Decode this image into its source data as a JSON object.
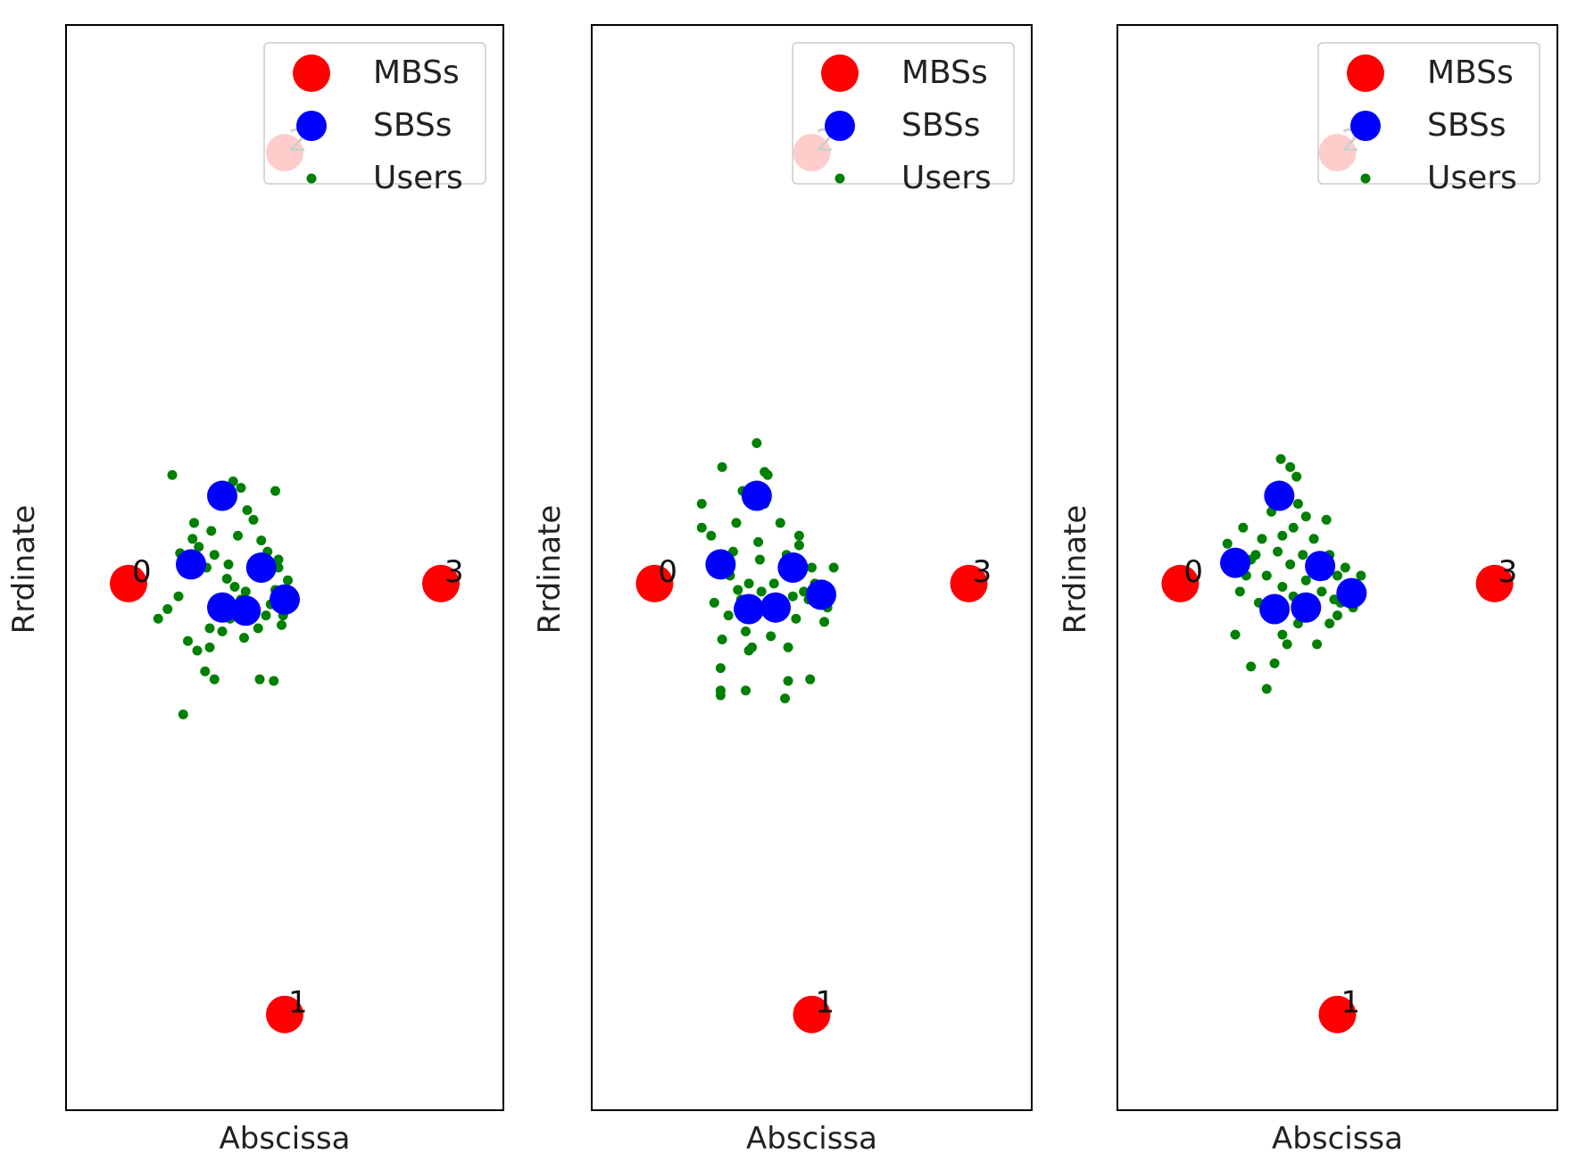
{
  "colors": {
    "mbs": "#ff0000",
    "sbs": "#0000ff",
    "user": "#008000",
    "frame": "#000000"
  },
  "chart_data": [
    {
      "type": "scatter",
      "xlabel": "Abscissa",
      "ylabel": "Rrdinate",
      "xlim": [
        -1.2,
        1.6
      ],
      "ylim": [
        -3.3,
        3.5
      ],
      "grid": false,
      "legend": {
        "position": "top-right",
        "entries": [
          "MBSs",
          "SBSs",
          "Users"
        ]
      },
      "mbs": [
        {
          "label": "0",
          "x": -0.8,
          "y": 0
        },
        {
          "label": "1",
          "x": 0.2,
          "y": -2.7
        },
        {
          "label": "2",
          "x": 0.2,
          "y": 2.7
        },
        {
          "label": "3",
          "x": 1.2,
          "y": 0
        }
      ],
      "sbs": [
        {
          "x": -0.2,
          "y": 0.55
        },
        {
          "x": -0.4,
          "y": 0.12
        },
        {
          "x": 0.05,
          "y": 0.1
        },
        {
          "x": 0.2,
          "y": -0.1
        },
        {
          "x": -0.2,
          "y": -0.15
        },
        {
          "x": -0.05,
          "y": -0.17
        }
      ],
      "users": [
        [
          -0.52,
          0.68
        ],
        [
          -0.13,
          0.64
        ],
        [
          -0.38,
          0.38
        ],
        [
          0.0,
          0.4
        ],
        [
          -0.3,
          0.1
        ],
        [
          0.16,
          0.15
        ],
        [
          -0.05,
          -0.05
        ],
        [
          -0.36,
          -0.42
        ],
        [
          0.04,
          -0.6
        ],
        [
          -0.45,
          -0.82
        ],
        [
          -0.25,
          -0.6
        ],
        [
          0.13,
          -0.61
        ],
        [
          0.22,
          0.02
        ],
        [
          -0.1,
          0.3
        ],
        [
          -0.28,
          -0.28
        ],
        [
          0.08,
          -0.2
        ],
        [
          -0.48,
          -0.08
        ],
        [
          0.14,
          0.58
        ],
        [
          -0.16,
          0.12
        ],
        [
          -0.04,
          0.46
        ],
        [
          -0.2,
          -0.3
        ],
        [
          0.1,
          0.09
        ],
        [
          -0.61,
          -0.22
        ],
        [
          -0.35,
          0.23
        ],
        [
          -0.12,
          -0.02
        ],
        [
          0.03,
          -0.28
        ],
        [
          0.19,
          -0.2
        ],
        [
          -0.27,
          0.33
        ],
        [
          0.05,
          0.27
        ],
        [
          -0.42,
          -0.36
        ],
        [
          -0.08,
          0.6
        ],
        [
          0.14,
          -0.04
        ],
        [
          -0.22,
          -0.1
        ],
        [
          -0.47,
          0.19
        ],
        [
          0.11,
          -0.13
        ],
        [
          -0.55,
          -0.16
        ],
        [
          -0.31,
          -0.55
        ],
        [
          0.06,
          0.06
        ],
        [
          -0.15,
          -0.22
        ],
        [
          -0.06,
          -0.34
        ],
        [
          0.18,
          -0.26
        ],
        [
          -0.39,
          0.28
        ],
        [
          0.0,
          0.13
        ],
        [
          -0.25,
          0.18
        ],
        [
          0.09,
          0.2
        ],
        [
          -0.17,
          0.03
        ],
        [
          -0.44,
          0.09
        ],
        [
          -0.28,
          -0.4
        ],
        [
          0.16,
          0.1
        ],
        [
          -0.08,
          -0.1
        ]
      ]
    },
    {
      "type": "scatter",
      "xlabel": "Abscissa",
      "ylabel": "Rrdinate",
      "xlim": [
        -1.2,
        1.6
      ],
      "ylim": [
        -3.3,
        3.5
      ],
      "grid": false,
      "legend": {
        "position": "top-right",
        "entries": [
          "MBSs",
          "SBSs",
          "Users"
        ]
      },
      "mbs": [
        {
          "label": "0",
          "x": -0.8,
          "y": 0
        },
        {
          "label": "1",
          "x": 0.2,
          "y": -2.7
        },
        {
          "label": "2",
          "x": 0.2,
          "y": 2.7
        },
        {
          "label": "3",
          "x": 1.2,
          "y": 0
        }
      ],
      "sbs": [
        {
          "x": -0.15,
          "y": 0.55
        },
        {
          "x": -0.38,
          "y": 0.12
        },
        {
          "x": 0.08,
          "y": 0.1
        },
        {
          "x": 0.26,
          "y": -0.07
        },
        {
          "x": -0.2,
          "y": -0.16
        },
        {
          "x": -0.03,
          "y": -0.15
        }
      ],
      "users": [
        [
          -0.15,
          0.88
        ],
        [
          -0.37,
          0.73
        ],
        [
          -0.08,
          0.68
        ],
        [
          -0.24,
          0.58
        ],
        [
          -0.5,
          0.5
        ],
        [
          0.0,
          0.38
        ],
        [
          -0.44,
          0.3
        ],
        [
          0.12,
          0.24
        ],
        [
          -0.3,
          0.2
        ],
        [
          0.2,
          0.1
        ],
        [
          -0.13,
          0.15
        ],
        [
          0.34,
          0.1
        ],
        [
          -0.04,
          0.0
        ],
        [
          -0.27,
          -0.04
        ],
        [
          0.18,
          -0.1
        ],
        [
          -0.33,
          -0.2
        ],
        [
          0.1,
          -0.22
        ],
        [
          -0.22,
          -0.3
        ],
        [
          0.28,
          -0.24
        ],
        [
          -0.06,
          -0.33
        ],
        [
          -0.37,
          -0.35
        ],
        [
          0.05,
          -0.4
        ],
        [
          -0.2,
          -0.42
        ],
        [
          -0.38,
          -0.53
        ],
        [
          0.19,
          -0.6
        ],
        [
          -0.38,
          -0.67
        ],
        [
          0.05,
          -0.61
        ],
        [
          -0.22,
          -0.67
        ],
        [
          -0.38,
          -0.7
        ],
        [
          0.03,
          -0.72
        ],
        [
          -0.18,
          -0.4
        ],
        [
          0.12,
          0.3
        ],
        [
          -0.1,
          0.5
        ],
        [
          -0.4,
          0.15
        ],
        [
          0.15,
          -0.05
        ],
        [
          -0.05,
          -0.2
        ],
        [
          0.22,
          0.0
        ],
        [
          -0.28,
          0.38
        ],
        [
          -0.14,
          0.26
        ],
        [
          -0.5,
          0.35
        ],
        [
          0.04,
          0.18
        ],
        [
          -0.25,
          -0.1
        ],
        [
          0.3,
          -0.15
        ],
        [
          -0.12,
          -0.05
        ],
        [
          -0.32,
          0.05
        ],
        [
          0.08,
          -0.08
        ],
        [
          -0.2,
          0.0
        ],
        [
          0.0,
          -0.12
        ],
        [
          -0.42,
          -0.12
        ],
        [
          -0.1,
          0.7
        ]
      ]
    },
    {
      "type": "scatter",
      "xlabel": "Abscissa",
      "ylabel": "Rrdinate",
      "xlim": [
        -1.2,
        1.6
      ],
      "ylim": [
        -3.3,
        3.5
      ],
      "grid": false,
      "legend": {
        "position": "top-right",
        "entries": [
          "MBSs",
          "SBSs",
          "Users"
        ]
      },
      "mbs": [
        {
          "label": "0",
          "x": -0.8,
          "y": 0
        },
        {
          "label": "1",
          "x": 0.2,
          "y": -2.7
        },
        {
          "label": "2",
          "x": 0.2,
          "y": 2.7
        },
        {
          "label": "3",
          "x": 1.2,
          "y": 0
        }
      ],
      "sbs": [
        {
          "x": -0.17,
          "y": 0.55
        },
        {
          "x": -0.45,
          "y": 0.13
        },
        {
          "x": 0.09,
          "y": 0.11
        },
        {
          "x": 0.29,
          "y": -0.06
        },
        {
          "x": -0.2,
          "y": -0.16
        },
        {
          "x": 0.0,
          "y": -0.15
        }
      ],
      "users": [
        [
          -0.16,
          0.78
        ],
        [
          -0.1,
          0.73
        ],
        [
          -0.06,
          0.67
        ],
        [
          -0.13,
          0.57
        ],
        [
          -0.22,
          0.45
        ],
        [
          -0.08,
          0.35
        ],
        [
          -0.5,
          0.25
        ],
        [
          0.0,
          0.42
        ],
        [
          0.13,
          0.4
        ],
        [
          -0.35,
          0.15
        ],
        [
          0.15,
          0.18
        ],
        [
          0.2,
          0.05
        ],
        [
          -0.25,
          0.05
        ],
        [
          0.0,
          0.02
        ],
        [
          -0.15,
          -0.02
        ],
        [
          0.1,
          -0.05
        ],
        [
          -0.3,
          -0.12
        ],
        [
          0.3,
          -0.15
        ],
        [
          -0.05,
          -0.25
        ],
        [
          -0.45,
          -0.32
        ],
        [
          0.15,
          -0.25
        ],
        [
          -0.15,
          -0.32
        ],
        [
          0.07,
          -0.38
        ],
        [
          -0.2,
          -0.5
        ],
        [
          -0.35,
          -0.52
        ],
        [
          -0.25,
          -0.66
        ],
        [
          -0.12,
          -0.38
        ],
        [
          0.2,
          -0.2
        ],
        [
          -0.4,
          0.35
        ],
        [
          -0.02,
          0.18
        ],
        [
          0.25,
          0.1
        ],
        [
          -0.18,
          0.2
        ],
        [
          -0.28,
          0.28
        ],
        [
          0.05,
          0.28
        ],
        [
          -0.38,
          0.05
        ],
        [
          0.18,
          -0.1
        ],
        [
          -0.08,
          -0.08
        ],
        [
          0.3,
          0.0
        ],
        [
          -0.22,
          -0.22
        ],
        [
          0.0,
          -0.1
        ],
        [
          -0.32,
          0.18
        ],
        [
          0.12,
          0.05
        ],
        [
          -0.1,
          0.12
        ],
        [
          -0.48,
          0.1
        ],
        [
          0.22,
          -0.12
        ],
        [
          -0.15,
          0.3
        ],
        [
          0.08,
          0.15
        ],
        [
          -0.42,
          -0.05
        ],
        [
          0.35,
          0.05
        ],
        [
          -0.05,
          0.5
        ]
      ]
    }
  ]
}
